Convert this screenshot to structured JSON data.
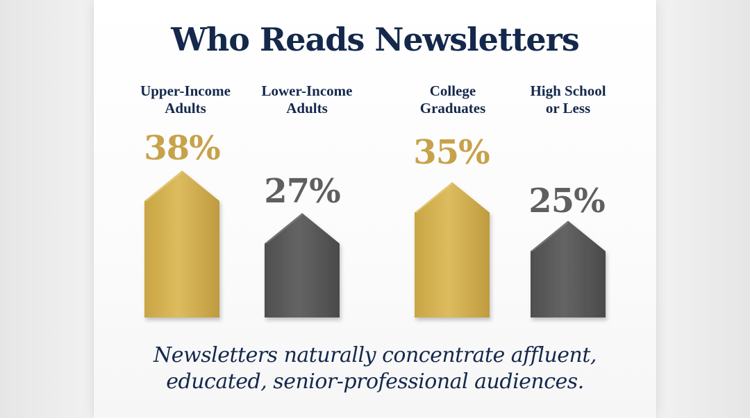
{
  "chart_data": {
    "type": "bar",
    "title": "Who Reads Newsletters",
    "categories": [
      [
        "Upper-Income",
        "Adults"
      ],
      [
        "Lower-Income",
        "Adults"
      ],
      [
        "College",
        "Graduates"
      ],
      [
        "High School",
        "or Less"
      ]
    ],
    "values": [
      38,
      27,
      35,
      25
    ],
    "value_labels": [
      "38%",
      "27%",
      "35%",
      "25%"
    ],
    "bar_colors": [
      "gold",
      "gray",
      "gold",
      "gray"
    ],
    "colors": {
      "gold": "#d4b04e",
      "gray": "#5c5c5c"
    },
    "ylim": [
      0,
      38
    ],
    "grid": false,
    "legend": "none"
  },
  "caption": {
    "line1": "Newsletters naturally concentrate affluent,",
    "line2": "educated, senior-professional audiences."
  }
}
